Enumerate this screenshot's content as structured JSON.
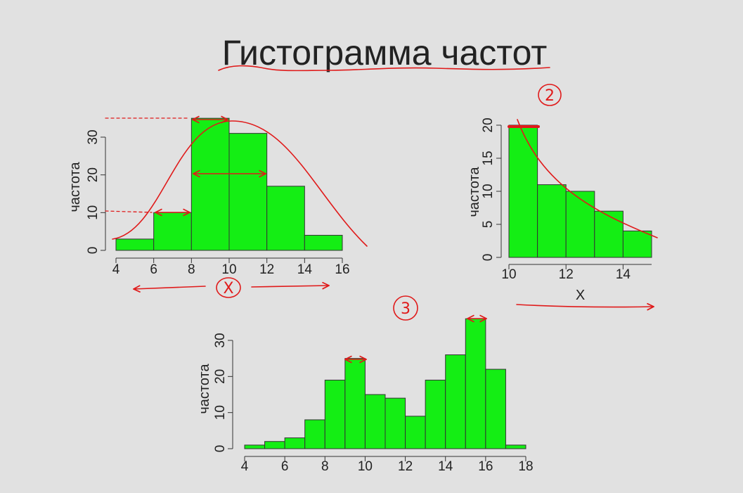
{
  "slide": {
    "title": "Гистограмма частот",
    "background_color": "#e1e1e1",
    "title_color": "#222222"
  },
  "annotations": {
    "color": "#e01a1a",
    "chart1_axis_note": "X",
    "chart2_marker": "2",
    "chart3_marker": "3"
  },
  "chart_data": [
    {
      "type": "bar",
      "bin_edges": [
        4,
        6,
        8,
        10,
        12,
        14,
        16
      ],
      "values": [
        3,
        10,
        35,
        31,
        17,
        4
      ],
      "ylabel": "частота",
      "xticks": [
        4,
        6,
        8,
        10,
        12,
        14,
        16
      ],
      "yticks": [
        0,
        10,
        20,
        30
      ],
      "xlim": [
        4,
        16
      ],
      "ylim": [
        0,
        35
      ],
      "grid": false,
      "bar_color": "#14ee14",
      "edge_color": "#333333"
    },
    {
      "type": "bar",
      "bin_edges": [
        10,
        11,
        12,
        13,
        14,
        15
      ],
      "values": [
        20,
        11,
        10,
        7,
        4
      ],
      "xlabel": "X",
      "ylabel": "частота",
      "xticks": [
        10,
        12,
        14
      ],
      "yticks": [
        0,
        5,
        10,
        15,
        20
      ],
      "xlim": [
        10,
        15
      ],
      "ylim": [
        0,
        20
      ],
      "grid": false,
      "bar_color": "#14ee14",
      "edge_color": "#333333"
    },
    {
      "type": "bar",
      "bin_edges": [
        4,
        5,
        6,
        7,
        8,
        9,
        10,
        11,
        12,
        13,
        14,
        15,
        16,
        17,
        18
      ],
      "values": [
        1,
        2,
        3,
        8,
        19,
        25,
        15,
        14,
        9,
        19,
        26,
        36,
        22,
        1
      ],
      "ylabel": "частота",
      "xticks": [
        4,
        6,
        8,
        10,
        12,
        14,
        16,
        18
      ],
      "yticks": [
        0,
        10,
        20,
        30
      ],
      "xlim": [
        4,
        18
      ],
      "ylim": [
        0,
        36
      ],
      "grid": false,
      "bar_color": "#14ee14",
      "edge_color": "#333333"
    }
  ]
}
